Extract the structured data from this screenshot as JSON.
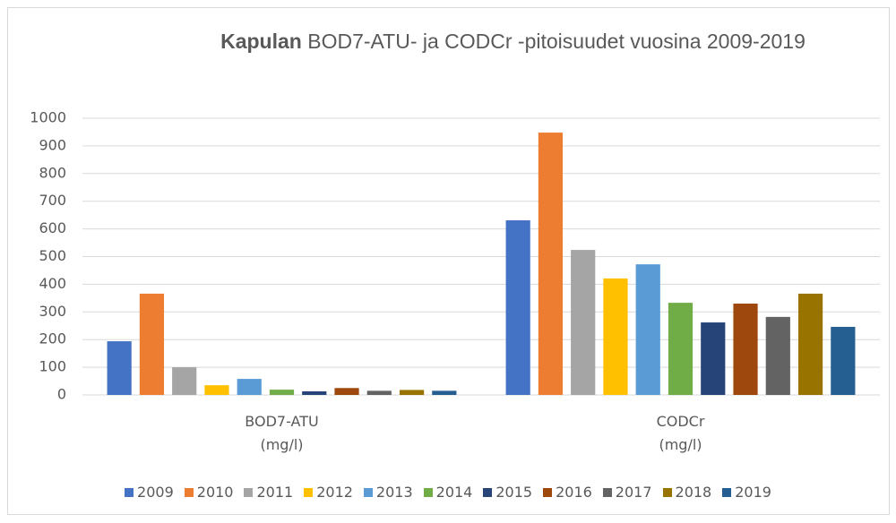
{
  "chart_data": {
    "type": "bar",
    "title_bold": "Kapulan",
    "title": "BOD7-ATU- ja CODCr -pitoisuudet vuosina 2009-2019",
    "categories": [
      "BOD7-ATU (mg/l)",
      "CODCr (mg/l)"
    ],
    "series": [
      {
        "name": "2009",
        "color": "#4472c4",
        "values": [
          194,
          631
        ]
      },
      {
        "name": "2010",
        "color": "#ed7d31",
        "values": [
          366,
          948
        ]
      },
      {
        "name": "2011",
        "color": "#a5a5a5",
        "values": [
          100,
          524
        ]
      },
      {
        "name": "2012",
        "color": "#ffc000",
        "values": [
          35,
          421
        ]
      },
      {
        "name": "2013",
        "color": "#5b9bd5",
        "values": [
          58,
          472
        ]
      },
      {
        "name": "2014",
        "color": "#70ad47",
        "values": [
          19,
          333
        ]
      },
      {
        "name": "2015",
        "color": "#264478",
        "values": [
          13,
          262
        ]
      },
      {
        "name": "2016",
        "color": "#9e480e",
        "values": [
          25,
          330
        ]
      },
      {
        "name": "2017",
        "color": "#636363",
        "values": [
          15,
          282
        ]
      },
      {
        "name": "2018",
        "color": "#997300",
        "values": [
          18,
          366
        ]
      },
      {
        "name": "2019",
        "color": "#255e91",
        "values": [
          15,
          246
        ]
      }
    ],
    "ylim": [
      0,
      1000
    ],
    "yticks": [
      0,
      100,
      200,
      300,
      400,
      500,
      600,
      700,
      800,
      900,
      1000
    ],
    "grid": true,
    "legend": "bottom"
  }
}
